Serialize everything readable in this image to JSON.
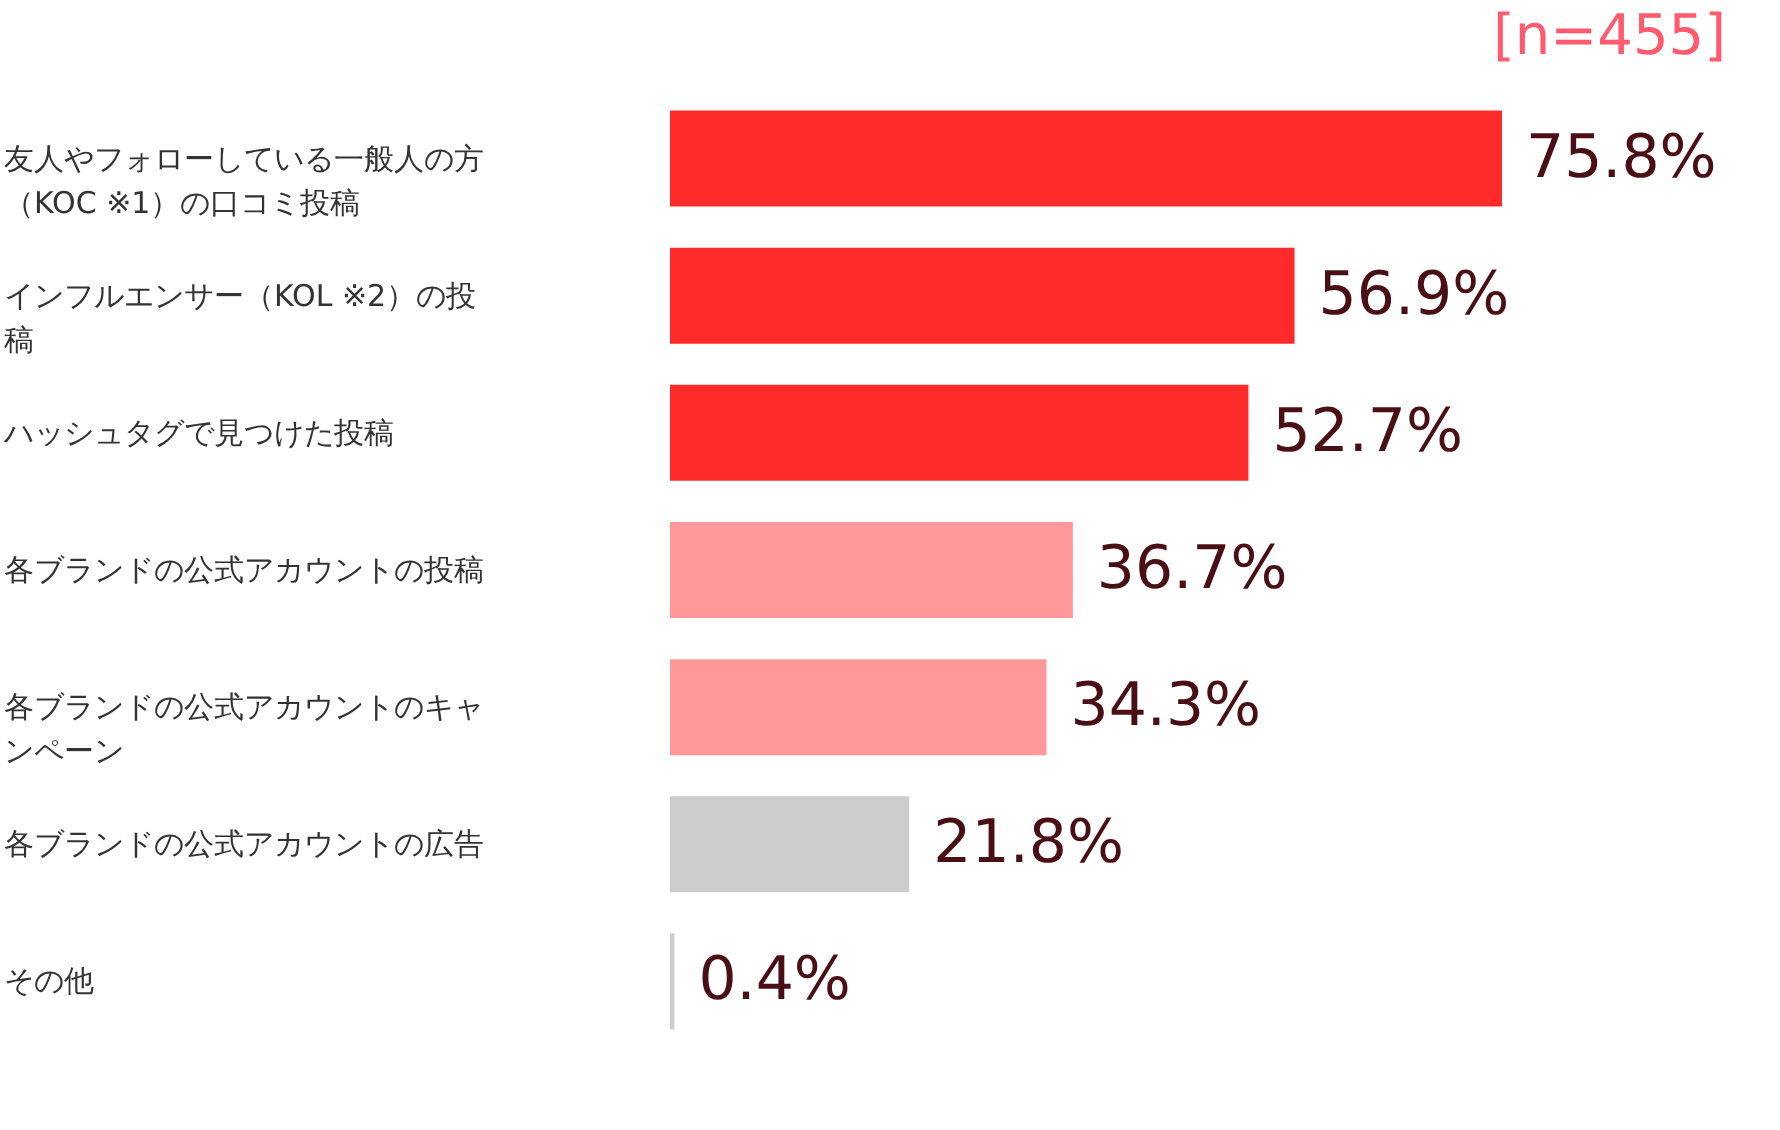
{
  "chart_data": {
    "type": "bar",
    "orientation": "horizontal",
    "categories": [
      "友人やフォローしている一般人の方（KOC ※1）の口コミ投稿",
      "インフルエンサー（KOL ※2）の投稿",
      "ハッシュタグで見つけた投稿",
      "各ブランドの公式アカウントの投稿",
      "各ブランドの公式アカウントのキャンペーン",
      "各ブランドの公式アカウントの広告",
      "その他"
    ],
    "values": [
      75.8,
      56.9,
      52.7,
      36.7,
      34.3,
      21.8,
      0.4
    ],
    "value_labels": [
      "75.8%",
      "56.9%",
      "52.7%",
      "36.7%",
      "34.3%",
      "21.8%",
      "0.4%"
    ],
    "colors": [
      "#ff2a2a",
      "#ff2a2a",
      "#ff2a2a",
      "#ff9999",
      "#ff9999",
      "#cccccc",
      "#cccccc"
    ],
    "annotations": [
      "[n=455]"
    ]
  }
}
